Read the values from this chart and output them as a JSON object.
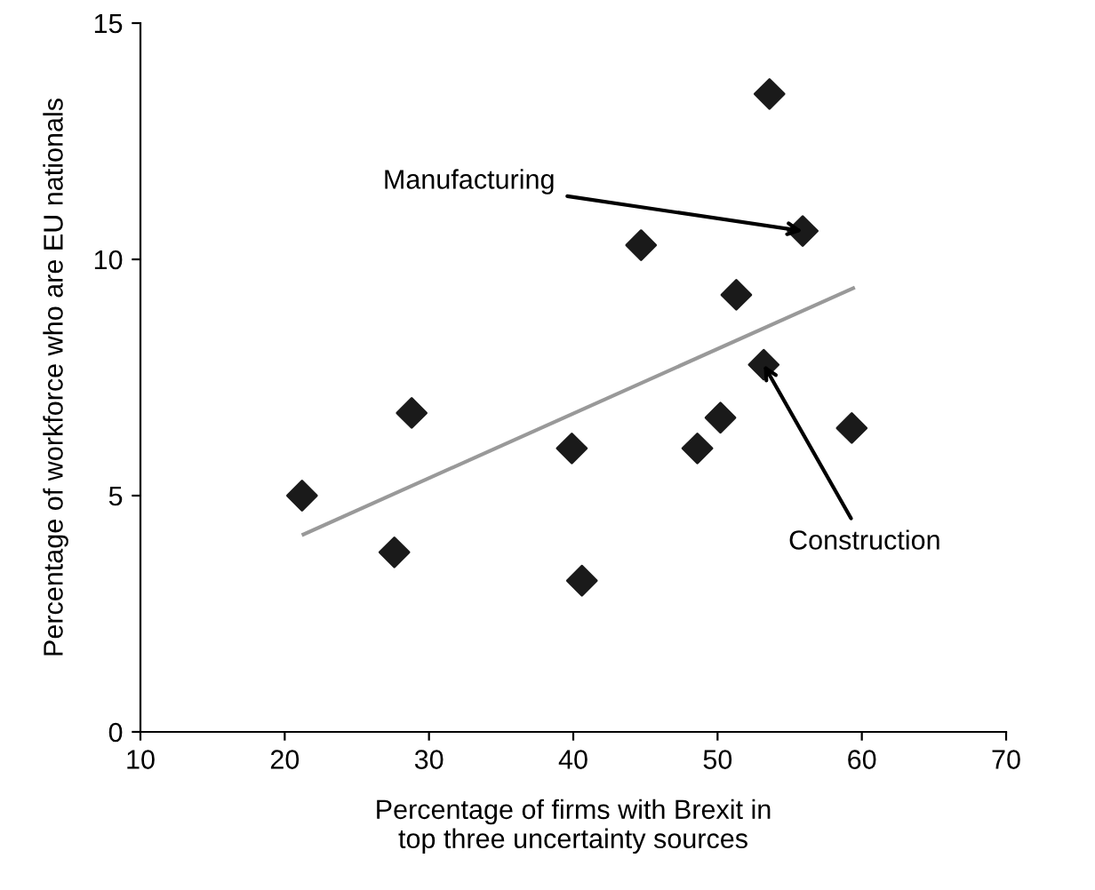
{
  "chart_data": {
    "type": "scatter",
    "xlabel": "Percentage of firms with Brexit in\ntop three uncertainty sources",
    "ylabel": "Percentage of workforce who are EU nationals",
    "series": [
      {
        "color": "#1a1a1a",
        "marker": "diamond",
        "x": [
          21.2,
          27.6,
          28.8,
          39.9,
          40.6,
          44.7,
          48.6,
          50.2,
          51.3,
          53.2,
          53.6,
          55.9,
          59.3
        ],
        "values": [
          5.0,
          3.8,
          6.75,
          6.0,
          3.2,
          10.3,
          6.0,
          6.65,
          9.25,
          7.77,
          13.5,
          10.6,
          6.43
        ]
      },
      {
        "type": "line",
        "color": "#999999",
        "x": [
          21.3,
          59.4
        ],
        "values": [
          4.18,
          9.39
        ]
      }
    ],
    "annotations": [
      {
        "text": "Manufacturing",
        "x": 55.9,
        "y": 10.6
      },
      {
        "text": "Construction",
        "x": 53.2,
        "y": 7.77
      }
    ],
    "xlim": [
      10,
      70
    ],
    "xticks": [
      10,
      20,
      30,
      40,
      50,
      60,
      70
    ],
    "ylim": [
      0,
      15
    ],
    "yticks": [
      0,
      5,
      10,
      15
    ],
    "grid": false,
    "legend": false
  }
}
